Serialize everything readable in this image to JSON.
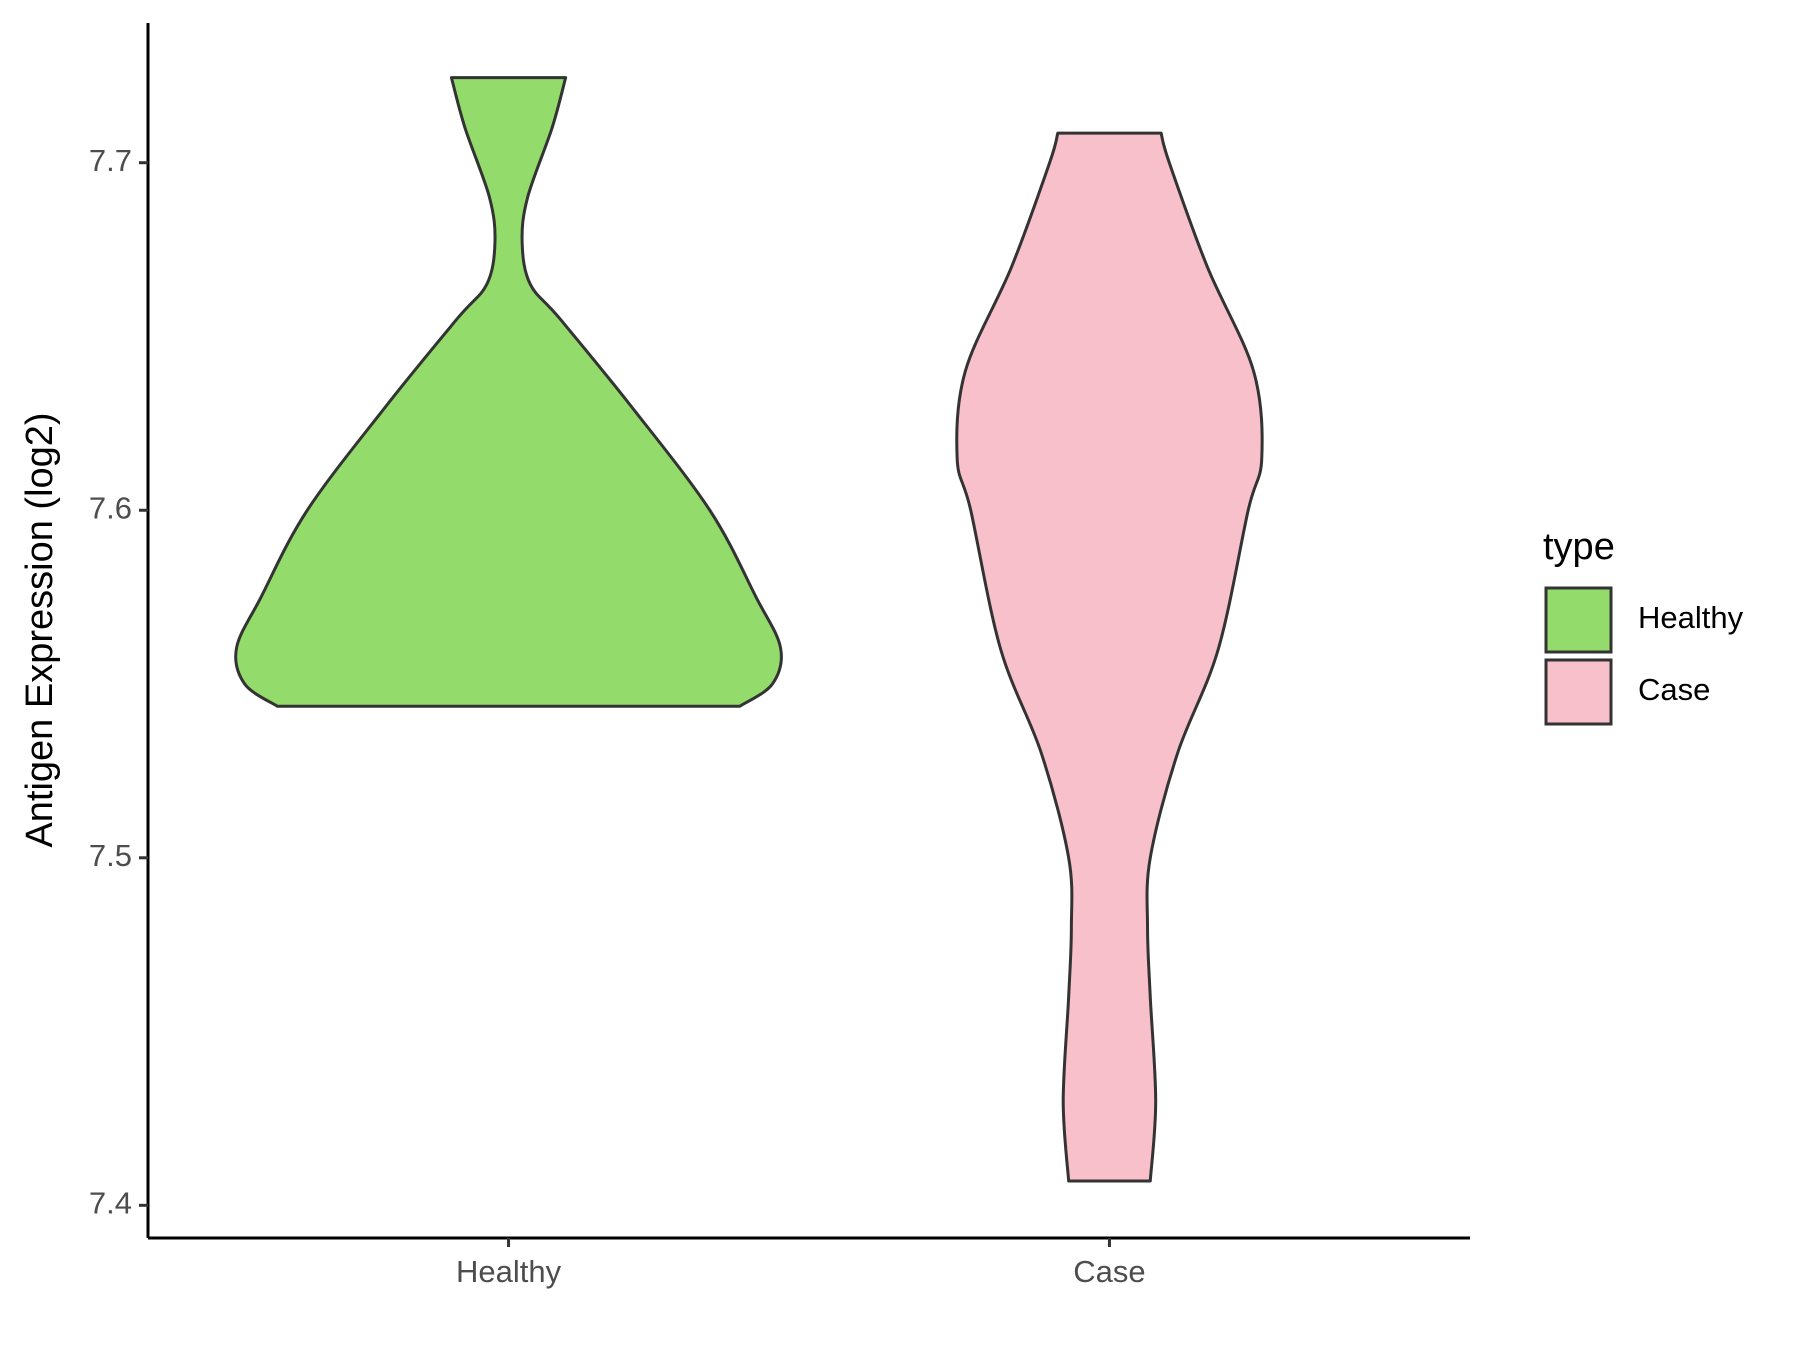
{
  "chart_data": {
    "type": "violin",
    "y_label": "Antigen Expression (log2)",
    "categories": [
      "Healthy",
      "Case"
    ],
    "legend_title": "type",
    "legend_position": "right",
    "ylim": [
      7.3906,
      7.7402
    ],
    "yticks": [
      7.4,
      7.5,
      7.6,
      7.7
    ],
    "series": [
      {
        "name": "Healthy",
        "color": "#93dc6b",
        "y": [
          7.5436,
          7.55,
          7.5604,
          7.575,
          7.6,
          7.63,
          7.655,
          7.665,
          7.677,
          7.69,
          7.71,
          7.7245
        ],
        "density": [
          0.85,
          0.97,
          1.0,
          0.91,
          0.74,
          0.45,
          0.19,
          0.08,
          0.05,
          0.07,
          0.16,
          0.21
        ]
      },
      {
        "name": "Case",
        "color": "#f7c0cb",
        "y": [
          7.407,
          7.43,
          7.46,
          7.48,
          7.5,
          7.53,
          7.56,
          7.6,
          7.615,
          7.64,
          7.67,
          7.7,
          7.7085
        ],
        "density": [
          0.15,
          0.17,
          0.15,
          0.14,
          0.15,
          0.25,
          0.4,
          0.51,
          0.56,
          0.53,
          0.36,
          0.22,
          0.19
        ]
      }
    ]
  }
}
